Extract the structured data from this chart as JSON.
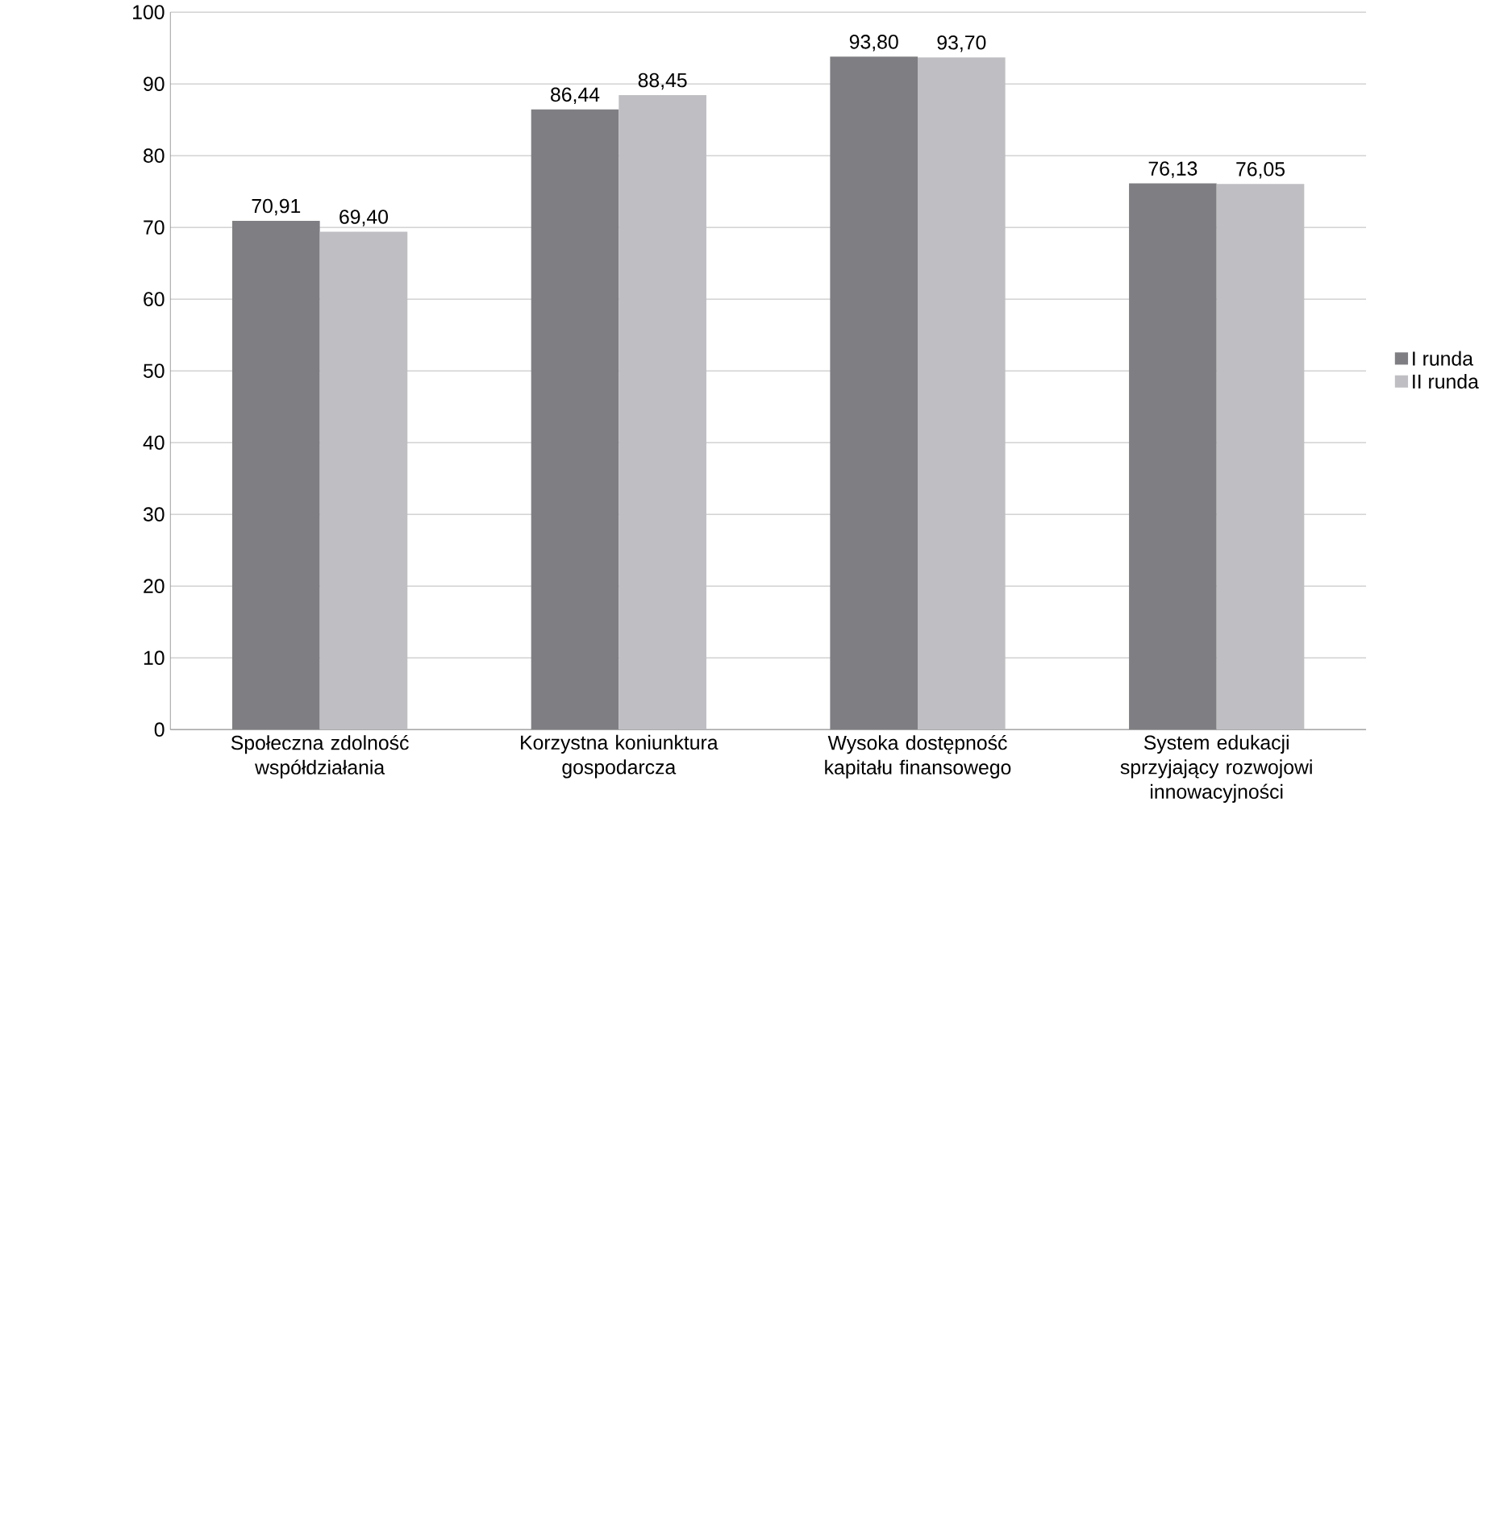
{
  "chart_data": {
    "type": "bar",
    "categories": [
      "Społeczna zdolność współdziałania",
      "Korzystna koniunktura gospodarcza",
      "Wysoka dostępność kapitału finansowego",
      "System edukacji sprzyjający rozwojowi innowacyjności"
    ],
    "series": [
      {
        "name": "I runda",
        "color": "#7f7f83",
        "values": [
          70.91,
          86.44,
          93.8,
          76.13
        ],
        "value_labels": [
          "70,91",
          "86,44",
          "93,80",
          "76,13"
        ]
      },
      {
        "name": "II runda",
        "color": "#bfbfc3",
        "values": [
          69.4,
          88.45,
          93.7,
          76.05
        ],
        "value_labels": [
          "69,40",
          "88,45",
          "93,70",
          "76,05"
        ]
      }
    ],
    "ylim": [
      0,
      100
    ],
    "yticks": [
      0,
      10,
      20,
      30,
      40,
      50,
      60,
      70,
      80,
      90,
      100
    ],
    "grid": "y",
    "legend": "right"
  }
}
